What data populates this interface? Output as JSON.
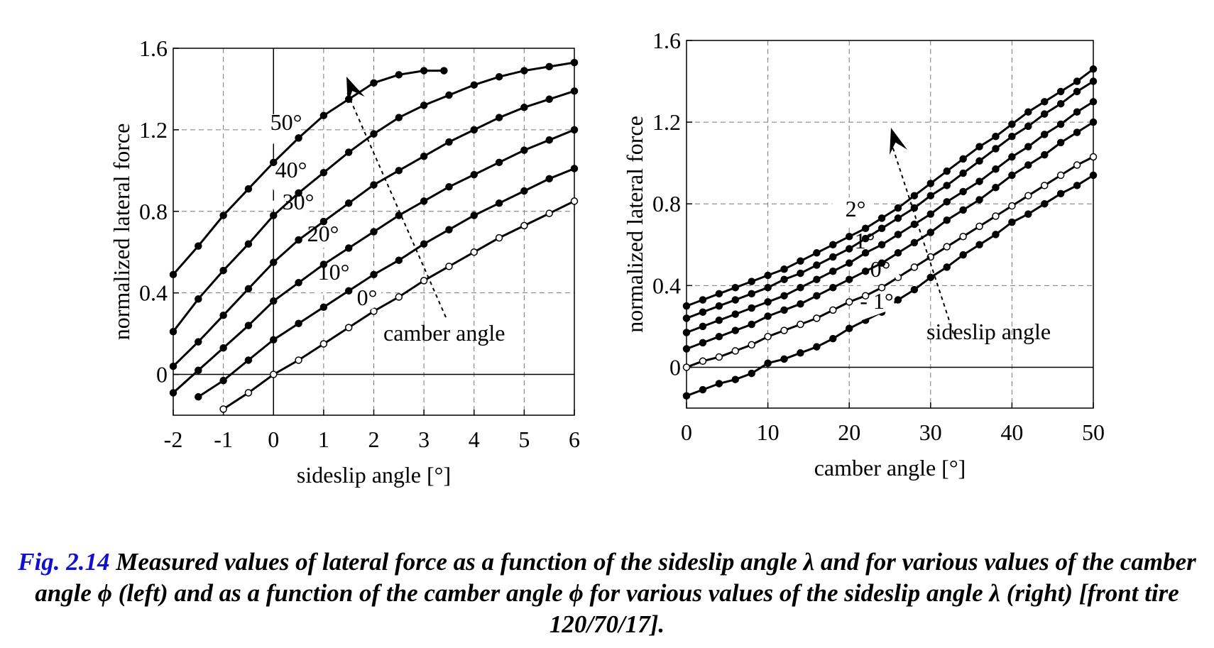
{
  "caption": {
    "label": "Fig. 2.14",
    "text": "Measured values of lateral force as a function of the sideslip angle λ and for various values of the camber angle ϕ (left) and as a function of the camber angle ϕ for various values of the sideslip angle λ (right) [front tire 120/70/17]."
  },
  "chart_data": [
    {
      "type": "line",
      "xlabel": "sideslip angle [°]",
      "ylabel": "normalized lateral force",
      "xlim": [
        -2,
        6
      ],
      "ylim": [
        -0.2,
        1.6
      ],
      "xticks": [
        "-2",
        "-1",
        "0",
        "1",
        "2",
        "3",
        "4",
        "5",
        "6"
      ],
      "yticks": [
        "0",
        "0.4",
        "0.8",
        "1.2",
        "1.6"
      ],
      "grid": true,
      "annotation": "camber angle",
      "series": [
        {
          "name": "0°",
          "hollow": true,
          "x": [
            -1,
            -0.5,
            0,
            0.5,
            1,
            1.5,
            2,
            2.5,
            3,
            3.5,
            4,
            4.5,
            5,
            5.5,
            6
          ],
          "y": [
            -0.17,
            -0.09,
            0.0,
            0.07,
            0.15,
            0.23,
            0.31,
            0.38,
            0.46,
            0.53,
            0.6,
            0.67,
            0.73,
            0.79,
            0.85
          ]
        },
        {
          "name": "10°",
          "hollow": false,
          "x": [
            -1.5,
            -1,
            -0.5,
            0,
            0.5,
            1,
            1.5,
            2,
            2.5,
            3,
            3.5,
            4,
            4.5,
            5,
            5.5,
            6
          ],
          "y": [
            -0.11,
            -0.03,
            0.07,
            0.17,
            0.25,
            0.33,
            0.41,
            0.49,
            0.56,
            0.64,
            0.71,
            0.78,
            0.84,
            0.9,
            0.96,
            1.01
          ]
        },
        {
          "name": "20°",
          "hollow": false,
          "x": [
            -2,
            -1.5,
            -1,
            -0.5,
            0,
            0.5,
            1,
            1.5,
            2,
            2.5,
            3,
            3.5,
            4,
            4.5,
            5,
            5.5,
            6
          ],
          "y": [
            -0.09,
            0.02,
            0.13,
            0.24,
            0.36,
            0.45,
            0.54,
            0.62,
            0.7,
            0.78,
            0.85,
            0.92,
            0.98,
            1.04,
            1.1,
            1.15,
            1.2
          ]
        },
        {
          "name": "30°",
          "hollow": false,
          "x": [
            -2,
            -1.5,
            -1,
            -0.5,
            0,
            0.5,
            1,
            1.5,
            2,
            2.5,
            3,
            3.5,
            4,
            4.5,
            5,
            5.5,
            6
          ],
          "y": [
            0.04,
            0.16,
            0.29,
            0.42,
            0.55,
            0.66,
            0.75,
            0.84,
            0.93,
            1.0,
            1.07,
            1.14,
            1.2,
            1.26,
            1.31,
            1.35,
            1.39
          ]
        },
        {
          "name": "40°",
          "hollow": false,
          "x": [
            -2,
            -1.5,
            -1,
            -0.5,
            0,
            0.5,
            1,
            1.5,
            2,
            2.5,
            3,
            3.5,
            4,
            4.5,
            5,
            5.5,
            6
          ],
          "y": [
            0.21,
            0.37,
            0.51,
            0.64,
            0.78,
            0.89,
            0.99,
            1.09,
            1.18,
            1.26,
            1.32,
            1.37,
            1.42,
            1.46,
            1.49,
            1.51,
            1.53
          ]
        },
        {
          "name": "50°",
          "hollow": false,
          "x": [
            -2,
            -1.5,
            -1,
            -0.5,
            0,
            0.5,
            1,
            1.5,
            2,
            2.5,
            3,
            3.4
          ],
          "y": [
            0.49,
            0.63,
            0.78,
            0.91,
            1.04,
            1.16,
            1.27,
            1.35,
            1.43,
            1.47,
            1.49,
            1.49
          ]
        }
      ]
    },
    {
      "type": "line",
      "xlabel": "camber angle [°]",
      "ylabel": "normalized lateral force",
      "xlim": [
        0,
        50
      ],
      "ylim": [
        -0.2,
        1.6
      ],
      "xticks": [
        "0",
        "10",
        "20",
        "30",
        "40",
        "50"
      ],
      "yticks": [
        "0",
        "0.4",
        "0.8",
        "1.2",
        "1.6"
      ],
      "grid": true,
      "annotation": "sideslip angle",
      "series": [
        {
          "name": "- 1°",
          "hollow": false,
          "x": [
            0,
            2,
            4,
            6,
            8,
            10,
            12,
            14,
            16,
            18,
            20,
            22,
            24,
            26,
            28,
            30,
            32,
            34,
            36,
            38,
            40,
            42,
            44,
            46,
            48,
            50
          ],
          "y": [
            -0.14,
            -0.11,
            -0.08,
            -0.06,
            -0.03,
            0.02,
            0.04,
            0.07,
            0.1,
            0.14,
            0.19,
            0.23,
            0.27,
            0.33,
            0.38,
            0.44,
            0.49,
            0.55,
            0.6,
            0.65,
            0.71,
            0.75,
            0.8,
            0.85,
            0.89,
            0.94
          ]
        },
        {
          "name": "0°",
          "hollow": true,
          "x": [
            0,
            2,
            4,
            6,
            8,
            10,
            12,
            14,
            16,
            18,
            20,
            22,
            24,
            26,
            28,
            30,
            32,
            34,
            36,
            38,
            40,
            42,
            44,
            46,
            48,
            50
          ],
          "y": [
            0.0,
            0.03,
            0.05,
            0.08,
            0.11,
            0.15,
            0.18,
            0.21,
            0.24,
            0.28,
            0.32,
            0.35,
            0.39,
            0.44,
            0.49,
            0.54,
            0.59,
            0.64,
            0.69,
            0.74,
            0.79,
            0.84,
            0.89,
            0.94,
            0.99,
            1.03
          ]
        },
        {
          "name": "1°",
          "hollow": false,
          "x": [
            0,
            2,
            4,
            6,
            8,
            10,
            12,
            14,
            16,
            18,
            20,
            22,
            24,
            26,
            28,
            30,
            32,
            34,
            36,
            38,
            40,
            42,
            44,
            46,
            48,
            50
          ],
          "y": [
            0.09,
            0.12,
            0.15,
            0.18,
            0.21,
            0.25,
            0.28,
            0.31,
            0.35,
            0.39,
            0.43,
            0.47,
            0.51,
            0.56,
            0.61,
            0.66,
            0.72,
            0.77,
            0.82,
            0.88,
            0.94,
            0.99,
            1.04,
            1.1,
            1.15,
            1.2
          ]
        },
        {
          "name": "2°",
          "hollow": false,
          "x": [
            0,
            2,
            4,
            6,
            8,
            10,
            12,
            14,
            16,
            18,
            20,
            22,
            24,
            26,
            28,
            30,
            32,
            34,
            36,
            38,
            40,
            42,
            44,
            46,
            48,
            50
          ],
          "y": [
            0.17,
            0.2,
            0.23,
            0.26,
            0.29,
            0.32,
            0.35,
            0.39,
            0.43,
            0.47,
            0.51,
            0.56,
            0.6,
            0.65,
            0.7,
            0.75,
            0.81,
            0.86,
            0.91,
            0.97,
            1.03,
            1.08,
            1.14,
            1.19,
            1.25,
            1.3
          ]
        },
        {
          "name": "",
          "hollow": false,
          "x": [
            0,
            2,
            4,
            6,
            8,
            10,
            12,
            14,
            16,
            18,
            20,
            22,
            24,
            26,
            28,
            30,
            32,
            34,
            36,
            38,
            40,
            42,
            44,
            46,
            48,
            50
          ],
          "y": [
            0.24,
            0.27,
            0.3,
            0.33,
            0.36,
            0.39,
            0.43,
            0.46,
            0.5,
            0.54,
            0.58,
            0.63,
            0.68,
            0.73,
            0.78,
            0.84,
            0.89,
            0.95,
            1.01,
            1.07,
            1.13,
            1.18,
            1.24,
            1.29,
            1.35,
            1.4
          ]
        },
        {
          "name": "",
          "hollow": false,
          "x": [
            0,
            2,
            4,
            6,
            8,
            10,
            12,
            14,
            16,
            18,
            20,
            22,
            24,
            26,
            28,
            30,
            32,
            34,
            36,
            38,
            40,
            42,
            44,
            46,
            48,
            50
          ],
          "y": [
            0.3,
            0.33,
            0.36,
            0.39,
            0.42,
            0.45,
            0.48,
            0.52,
            0.56,
            0.6,
            0.64,
            0.68,
            0.73,
            0.78,
            0.84,
            0.9,
            0.96,
            1.02,
            1.08,
            1.13,
            1.19,
            1.25,
            1.3,
            1.35,
            1.4,
            1.46
          ]
        }
      ]
    }
  ]
}
